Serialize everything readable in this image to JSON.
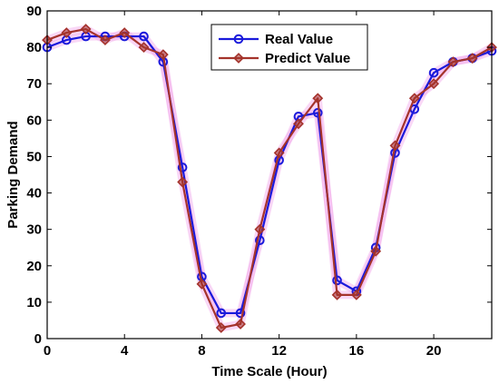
{
  "chart_data": {
    "type": "line",
    "xlabel": "Time Scale (Hour)",
    "ylabel": "Parking Demand",
    "xlim": [
      0,
      23
    ],
    "ylim": [
      0,
      90
    ],
    "xticks": [
      0,
      4,
      8,
      12,
      16,
      20
    ],
    "yticks": [
      0,
      10,
      20,
      30,
      40,
      50,
      60,
      70,
      80,
      90
    ],
    "grid": false,
    "legend_position": "top-center",
    "x": [
      0,
      1,
      2,
      3,
      4,
      5,
      6,
      7,
      8,
      9,
      10,
      11,
      12,
      13,
      14,
      15,
      16,
      17,
      18,
      19,
      20,
      21,
      22,
      23
    ],
    "series": [
      {
        "name": "Real Value",
        "color": "#1a1adb",
        "marker": "circle",
        "values": [
          80,
          82,
          83,
          83,
          83,
          83,
          76,
          47,
          17,
          7,
          7,
          27,
          49,
          61,
          62,
          16,
          13,
          25,
          51,
          63,
          73,
          76,
          77,
          79
        ]
      },
      {
        "name": "Predict Value",
        "color": "#a4332b",
        "marker": "diamond",
        "values": [
          82,
          84,
          85,
          82,
          84,
          80,
          78,
          43,
          15,
          3,
          4,
          30,
          51,
          59,
          66,
          12,
          12,
          24,
          53,
          66,
          70,
          76,
          77,
          80
        ]
      }
    ]
  }
}
